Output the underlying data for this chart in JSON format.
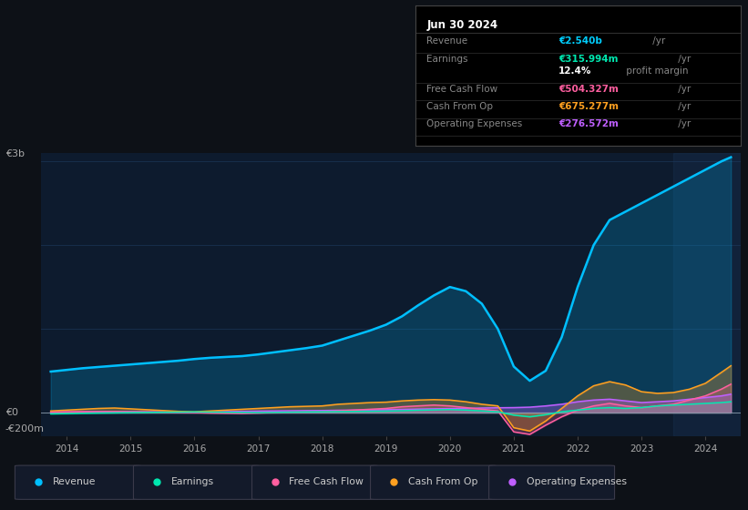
{
  "bg_color": "#0d1117",
  "plot_bg_color": "#0d1b2e",
  "grid_color": "#1e3a5f",
  "info_box": {
    "date": "Jun 30 2024",
    "rows": [
      {
        "label": "Revenue",
        "value": "€2.540b",
        "unit": " /yr",
        "value_color": "#00cfff",
        "sep_after": true
      },
      {
        "label": "Earnings",
        "value": "€315.994m",
        "unit": " /yr",
        "value_color": "#00e8b0",
        "sep_after": false
      },
      {
        "label": "",
        "value": "12.4%",
        "unit": " profit margin",
        "value_color": "#ffffff",
        "sep_after": true
      },
      {
        "label": "Free Cash Flow",
        "value": "€504.327m",
        "unit": " /yr",
        "value_color": "#ff5fa0",
        "sep_after": true
      },
      {
        "label": "Cash From Op",
        "value": "€675.277m",
        "unit": " /yr",
        "value_color": "#ffa020",
        "sep_after": true
      },
      {
        "label": "Operating Expenses",
        "value": "€276.572m",
        "unit": " /yr",
        "value_color": "#bf5fff",
        "sep_after": true
      }
    ]
  },
  "ylabel_top": "€3b",
  "ylabel_zero": "€0",
  "ylabel_bot": "-€200m",
  "x_labels": [
    "2014",
    "2015",
    "2016",
    "2017",
    "2018",
    "2019",
    "2020",
    "2021",
    "2022",
    "2023",
    "2024"
  ],
  "legend": [
    {
      "label": "Revenue",
      "color": "#00bfff"
    },
    {
      "label": "Earnings",
      "color": "#00e8b0"
    },
    {
      "label": "Free Cash Flow",
      "color": "#ff5fa0"
    },
    {
      "label": "Cash From Op",
      "color": "#ffa020"
    },
    {
      "label": "Operating Expenses",
      "color": "#bf5fff"
    }
  ],
  "ylim": [
    -280,
    3100
  ],
  "xlim": [
    2013.6,
    2024.55
  ],
  "series": {
    "years": [
      2013.75,
      2014.0,
      2014.25,
      2014.5,
      2014.75,
      2015.0,
      2015.25,
      2015.5,
      2015.75,
      2016.0,
      2016.25,
      2016.5,
      2016.75,
      2017.0,
      2017.25,
      2017.5,
      2017.75,
      2018.0,
      2018.25,
      2018.5,
      2018.75,
      2019.0,
      2019.25,
      2019.5,
      2019.75,
      2020.0,
      2020.25,
      2020.5,
      2020.75,
      2021.0,
      2021.25,
      2021.5,
      2021.75,
      2022.0,
      2022.25,
      2022.5,
      2022.75,
      2023.0,
      2023.25,
      2023.5,
      2023.75,
      2024.0,
      2024.25,
      2024.4
    ],
    "revenue": [
      490,
      510,
      530,
      545,
      560,
      575,
      590,
      605,
      620,
      640,
      655,
      665,
      675,
      695,
      720,
      745,
      770,
      800,
      860,
      920,
      980,
      1050,
      1150,
      1280,
      1400,
      1500,
      1450,
      1300,
      1000,
      550,
      380,
      500,
      900,
      1500,
      2000,
      2300,
      2400,
      2500,
      2600,
      2700,
      2800,
      2900,
      3000,
      3050
    ],
    "earnings": [
      -15,
      -12,
      -8,
      -5,
      -3,
      0,
      2,
      4,
      6,
      8,
      6,
      4,
      2,
      0,
      2,
      5,
      8,
      10,
      12,
      14,
      16,
      18,
      22,
      28,
      32,
      36,
      30,
      20,
      10,
      -30,
      -50,
      -25,
      10,
      30,
      50,
      60,
      50,
      60,
      80,
      90,
      100,
      110,
      120,
      130
    ],
    "free_cash_flow": [
      5,
      8,
      10,
      12,
      14,
      10,
      8,
      5,
      2,
      0,
      -5,
      -8,
      -10,
      -5,
      0,
      5,
      8,
      10,
      20,
      30,
      40,
      50,
      70,
      80,
      90,
      80,
      60,
      40,
      20,
      -230,
      -260,
      -150,
      -50,
      30,
      80,
      110,
      80,
      60,
      80,
      100,
      150,
      200,
      280,
      340
    ],
    "cash_from_op": [
      20,
      30,
      40,
      50,
      55,
      45,
      35,
      25,
      15,
      10,
      20,
      30,
      40,
      50,
      60,
      70,
      75,
      80,
      100,
      110,
      120,
      125,
      140,
      150,
      155,
      150,
      130,
      100,
      80,
      -180,
      -220,
      -100,
      50,
      200,
      320,
      370,
      330,
      250,
      230,
      240,
      280,
      350,
      480,
      560
    ],
    "operating_expenses": [
      5,
      8,
      10,
      12,
      14,
      12,
      10,
      8,
      6,
      5,
      8,
      12,
      15,
      18,
      20,
      22,
      24,
      25,
      28,
      30,
      32,
      35,
      38,
      42,
      45,
      48,
      50,
      55,
      58,
      60,
      65,
      80,
      100,
      130,
      150,
      160,
      140,
      120,
      130,
      140,
      160,
      180,
      200,
      220
    ]
  }
}
